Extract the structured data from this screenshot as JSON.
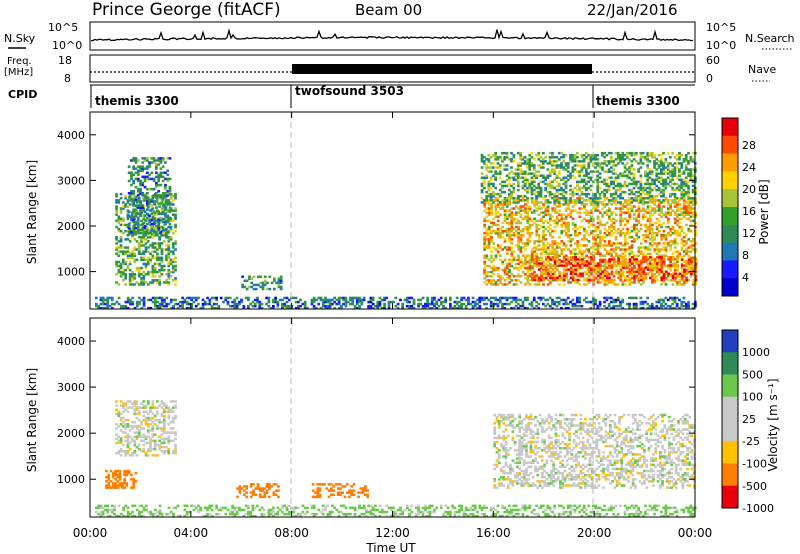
{
  "header": {
    "title": "Prince George (fitACF)",
    "beam": "Beam 00",
    "date": "22/Jan/2016"
  },
  "summary": {
    "nsky_label": "N.Sky",
    "nsearch_label": "N.Search",
    "nsky_ticks": [
      "10^5",
      "10^0"
    ],
    "nsearch_ticks": [
      "10^5",
      "10^0"
    ],
    "freq_label_1": "Freq.",
    "freq_label_2": "[MHz]",
    "freq_ticks": [
      "18",
      "8"
    ],
    "nave_label": "Nave",
    "nave_ticks": [
      "60",
      "0"
    ],
    "cpid_label": "CPID",
    "cpid_segments": [
      {
        "name": "themis 3300",
        "start": 0,
        "end": 8
      },
      {
        "name": "twofsound 3503",
        "start": 8,
        "end": 20
      },
      {
        "name": "themis 3300",
        "start": 20,
        "end": 24
      }
    ]
  },
  "axes": {
    "ylabel": "Slant Range [km]",
    "xlabel": "Time UT",
    "xticks": [
      "00:00",
      "04:00",
      "08:00",
      "12:00",
      "16:00",
      "20:00",
      "00:00"
    ],
    "yticks": [
      "1000",
      "2000",
      "3000",
      "4000"
    ]
  },
  "colorbars": {
    "power": {
      "label": "Power [dB]",
      "ticks": [
        "28",
        "24",
        "20",
        "16",
        "12",
        "8",
        "4"
      ],
      "colors": [
        "#e8000b",
        "#ff4a00",
        "#ff9d00",
        "#ffd100",
        "#a6c43a",
        "#33a02c",
        "#2e8b57",
        "#1f78b4",
        "#1a1aff",
        "#0000cc"
      ]
    },
    "velocity": {
      "label": "Velocity [m s⁻¹]",
      "ticks": [
        "1000",
        "500",
        "100",
        "25",
        "-25",
        "-100",
        "-500",
        "-1000"
      ],
      "colors": [
        "#1f3fbf",
        "#2e8b57",
        "#6ac94a",
        "#c8c8c8",
        "#c8c8c8",
        "#ffc000",
        "#ff7f00",
        "#e8000b"
      ]
    }
  },
  "chart_data": [
    {
      "type": "heatmap",
      "xlabel": "Time UT",
      "ylabel": "Slant Range [km]",
      "colorbar_label": "Power [dB]",
      "x_range_hours": [
        0,
        24
      ],
      "y_range_km": [
        180,
        4500
      ],
      "value_range_db": [
        0,
        32
      ],
      "regions": [
        {
          "t": [
            1.0,
            3.4
          ],
          "r": [
            700,
            2700
          ],
          "level_db": 14
        },
        {
          "t": [
            1.5,
            3.2
          ],
          "r": [
            1800,
            3500
          ],
          "level_db": 10
        },
        {
          "t": [
            0.2,
            24.0
          ],
          "r": [
            180,
            450
          ],
          "level_db": 8
        },
        {
          "t": [
            6.0,
            7.6
          ],
          "r": [
            600,
            900
          ],
          "level_db": 12
        },
        {
          "t": [
            15.6,
            24.0
          ],
          "r": [
            700,
            2600
          ],
          "level_db": 22
        },
        {
          "t": [
            17.5,
            24.0
          ],
          "r": [
            800,
            1300
          ],
          "level_db": 28
        },
        {
          "t": [
            15.5,
            24.0
          ],
          "r": [
            2500,
            3600
          ],
          "level_db": 14
        }
      ]
    },
    {
      "type": "heatmap",
      "xlabel": "Time UT",
      "ylabel": "Slant Range [km]",
      "colorbar_label": "Velocity [m s⁻¹]",
      "x_range_hours": [
        0,
        24
      ],
      "y_range_km": [
        180,
        4500
      ],
      "value_range_ms": [
        -1000,
        1000
      ],
      "regions": [
        {
          "t": [
            1.0,
            3.4
          ],
          "r": [
            1500,
            2700
          ],
          "level_ms": 0
        },
        {
          "t": [
            0.6,
            1.8
          ],
          "r": [
            800,
            1200
          ],
          "level_ms": -300
        },
        {
          "t": [
            5.8,
            7.5
          ],
          "r": [
            600,
            900
          ],
          "level_ms": -300
        },
        {
          "t": [
            8.8,
            11.0
          ],
          "r": [
            600,
            900
          ],
          "level_ms": -300
        },
        {
          "t": [
            0.2,
            24.0
          ],
          "r": [
            180,
            450
          ],
          "level_ms": 100
        },
        {
          "t": [
            16.0,
            24.0
          ],
          "r": [
            800,
            2400
          ],
          "level_ms": 0
        }
      ]
    }
  ]
}
